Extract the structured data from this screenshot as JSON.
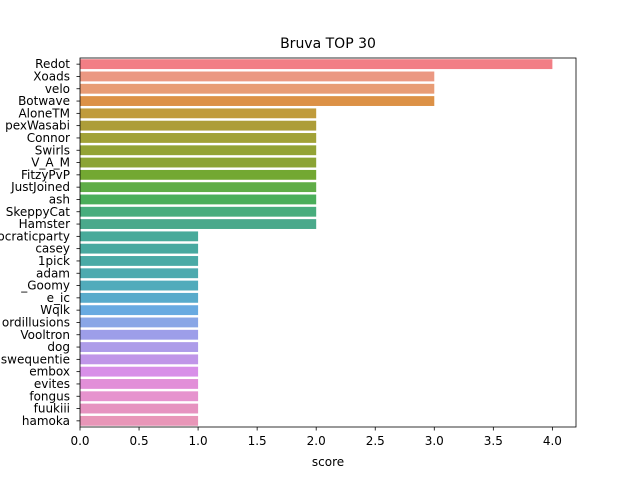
{
  "chart_data": {
    "type": "bar",
    "orientation": "horizontal",
    "title": "Bruva TOP 30",
    "xlabel": "score",
    "ylabel": "",
    "xlim": [
      0,
      4.2
    ],
    "xticks": [
      "0.0",
      "0.5",
      "1.0",
      "1.5",
      "2.0",
      "2.5",
      "3.0",
      "3.5",
      "4.0"
    ],
    "grid": false,
    "categories": [
      "Redot",
      "Xoads",
      "velo",
      "Botwave",
      "AloneTM",
      "pexWasabi",
      "Connor",
      "Swirls",
      "V_A_M",
      "FitzyPvP",
      "JustJoined",
      "ash",
      "SkeppyCat",
      "Hamster",
      "ocraticparty",
      "casey",
      "1pick",
      "adam",
      "_Goomy",
      "e_ic",
      "Wqlk",
      "ordillusions",
      "Vooltron",
      "dog",
      "swequentie",
      "embox",
      "evites",
      "fongus",
      "fuukiii",
      "hamoka"
    ],
    "values": [
      4,
      3,
      3,
      3,
      2,
      2,
      2,
      2,
      2,
      2,
      2,
      2,
      2,
      2,
      1,
      1,
      1,
      1,
      1,
      1,
      1,
      1,
      1,
      1,
      1,
      1,
      1,
      1,
      1,
      1
    ],
    "colors": [
      "#f27e85",
      "#eb9882",
      "#e89c75",
      "#dc9146",
      "#c09b3b",
      "#ad9d38",
      "#a2a237",
      "#93a335",
      "#8ba434",
      "#73a832",
      "#5fad47",
      "#4aae5a",
      "#48ad7d",
      "#4aa98b",
      "#48aa9a",
      "#48a9a0",
      "#4aaaa6",
      "#4daaaf",
      "#51abbb",
      "#58abcb",
      "#68aae1",
      "#89a6e6",
      "#9d9ee9",
      "#ad9ce9",
      "#c096e8",
      "#d88fe8",
      "#e28fd8",
      "#e693ce",
      "#e693c0",
      "#e896b8"
    ]
  }
}
